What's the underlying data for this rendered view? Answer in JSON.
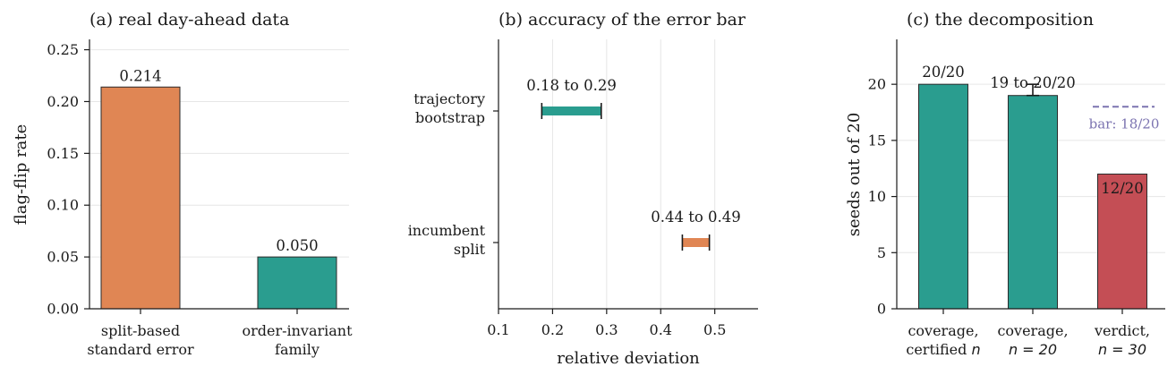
{
  "colors": {
    "orange": "#e08654",
    "teal": "#2a9d8f",
    "red": "#c44e55",
    "purple": "#7b73b0",
    "errbar": "#1a1a1a"
  },
  "chart_data": [
    {
      "type": "bar",
      "title": "(a) real day-ahead data",
      "ylabel": "flag-flip rate",
      "xlabel": "",
      "ylim": [
        0,
        0.26
      ],
      "yticks": [
        0.0,
        0.05,
        0.1,
        0.15,
        0.2,
        0.25
      ],
      "ytick_labels": [
        "0.00",
        "0.05",
        "0.10",
        "0.15",
        "0.20",
        "0.25"
      ],
      "categories": [
        [
          "split-based",
          "standard error"
        ],
        [
          "order-invariant",
          "family"
        ]
      ],
      "values": [
        0.214,
        0.05
      ],
      "value_labels": [
        "0.214",
        "0.050"
      ],
      "bar_colors": [
        "#e08654",
        "#2a9d8f"
      ],
      "grid": "horizontal"
    },
    {
      "type": "interval",
      "title": "(b) accuracy of the error bar",
      "xlabel": "relative deviation",
      "ylabel": "",
      "xlim": [
        0.1,
        0.58
      ],
      "xticks": [
        0.1,
        0.2,
        0.3,
        0.4,
        0.5
      ],
      "xtick_labels": [
        "0.1",
        "0.2",
        "0.3",
        "0.4",
        "0.5"
      ],
      "categories": [
        [
          "trajectory",
          "bootstrap"
        ],
        [
          "incumbent",
          "split"
        ]
      ],
      "intervals": [
        [
          0.18,
          0.29
        ],
        [
          0.44,
          0.49
        ]
      ],
      "interval_labels": [
        "0.18 to 0.29",
        "0.44 to 0.49"
      ],
      "interval_colors": [
        "#2a9d8f",
        "#e08654"
      ],
      "grid": "vertical"
    },
    {
      "type": "bar",
      "title": "(c) the decomposition",
      "ylabel": "seeds out of 20",
      "xlabel": "",
      "ylim": [
        0,
        24
      ],
      "yticks": [
        0,
        5,
        10,
        15,
        20
      ],
      "ytick_labels": [
        "0",
        "5",
        "10",
        "15",
        "20"
      ],
      "categories": [
        {
          "line1": "coverage,",
          "line2_text": "certified ",
          "line2_math": "n"
        },
        {
          "line1": "coverage,",
          "line2_text": "",
          "line2_math": "n = 20"
        },
        {
          "line1": "verdict,",
          "line2_text": "",
          "line2_math": "n = 30"
        }
      ],
      "values": [
        20,
        19,
        12
      ],
      "error_range": [
        null,
        [
          19,
          20
        ],
        null
      ],
      "value_labels": [
        "20/20",
        "19 to 20/20",
        "12/20"
      ],
      "bar_colors": [
        "#2a9d8f",
        "#2a9d8f",
        "#c44e55"
      ],
      "reference_line": {
        "value": 18,
        "label": "bar: 18/20",
        "style": "dashed"
      },
      "grid": "horizontal"
    }
  ]
}
